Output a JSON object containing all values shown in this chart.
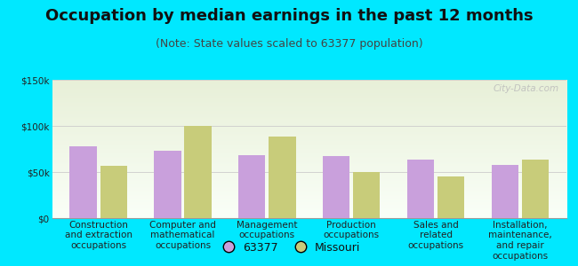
{
  "title": "Occupation by median earnings in the past 12 months",
  "subtitle": "(Note: State values scaled to 63377 population)",
  "categories": [
    "Construction\nand extraction\noccupations",
    "Computer and\nmathematical\noccupations",
    "Management\noccupations",
    "Production\noccupations",
    "Sales and\nrelated\noccupations",
    "Installation,\nmaintenance,\nand repair\noccupations"
  ],
  "values_63377": [
    78000,
    73000,
    68000,
    67000,
    63000,
    58000
  ],
  "values_missouri": [
    57000,
    100000,
    88000,
    50000,
    45000,
    63000
  ],
  "color_63377": "#c9a0dc",
  "color_missouri": "#c8cc7a",
  "background_outer": "#00e8ff",
  "background_plot_top": "#e8f0d8",
  "background_plot_bottom": "#f8fdf4",
  "ylim": [
    0,
    150000
  ],
  "yticks": [
    0,
    50000,
    100000,
    150000
  ],
  "ytick_labels": [
    "$0",
    "$50k",
    "$100k",
    "$150k"
  ],
  "legend_label_1": "63377",
  "legend_label_2": "Missouri",
  "watermark": "City-Data.com",
  "title_fontsize": 13,
  "subtitle_fontsize": 9,
  "tick_fontsize": 7.5,
  "legend_fontsize": 9,
  "bar_width": 0.32
}
